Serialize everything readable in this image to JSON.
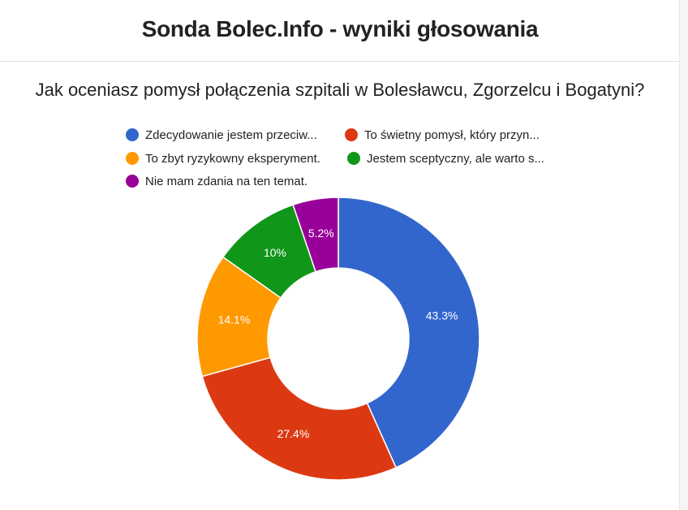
{
  "header": {
    "title": "Sonda Bolec.Info - wyniki głosowania"
  },
  "chart_data": {
    "type": "pie",
    "variant": "donut",
    "title": "Jak oceniasz pomysł połączenia szpitali w Bolesławcu, Zgorzelcu i Bogatyni?",
    "legend_position": "top",
    "slices": [
      {
        "label": "Zdecydowanie jestem przeciw...",
        "value": 43.3,
        "display": "43.3%",
        "color": "#3366cc"
      },
      {
        "label": "To świetny pomysł, który przyn...",
        "value": 27.4,
        "display": "27.4%",
        "color": "#dc3912"
      },
      {
        "label": "To zbyt ryzykowny eksperyment.",
        "value": 14.1,
        "display": "14.1%",
        "color": "#ff9900"
      },
      {
        "label": "Jestem sceptyczny, ale warto s...",
        "value": 10.0,
        "display": "10%",
        "color": "#109618"
      },
      {
        "label": "Nie mam zdania na ten temat.",
        "value": 5.2,
        "display": "5.2%",
        "color": "#990099"
      }
    ]
  }
}
